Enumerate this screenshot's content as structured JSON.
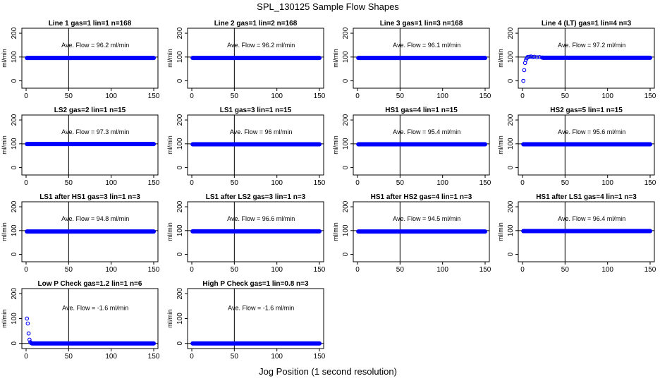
{
  "title": "SPL_130125  Sample Flow Shapes",
  "xlabel": "Jog Position (1 second resolution)",
  "colors": {
    "points": "#0000ff",
    "axis": "#000000",
    "reference_line": "#000000"
  },
  "chart_data": [
    {
      "type": "scatter",
      "title": "Line 1 gas=1 lin=1 n=168",
      "ylabel": "ml/min",
      "annotation": "Ave. Flow =  96.2  ml/min",
      "xlim": [
        0,
        150
      ],
      "ylim": [
        -25,
        215
      ],
      "xticks": [
        0,
        50,
        100,
        150
      ],
      "yticks": [
        0,
        100,
        200
      ],
      "ytick_labels": [
        "0",
        "100",
        "200"
      ],
      "vline": 50,
      "hline": 100,
      "points": [
        [
          1,
          96
        ],
        [
          150,
          96
        ]
      ],
      "flat": {
        "x0": 1,
        "x1": 150,
        "y": 96
      }
    },
    {
      "type": "scatter",
      "title": "Line 2 gas=1 lin=2 n=168",
      "ylabel": "ml/min",
      "annotation": "Ave. Flow =  96.2  ml/min",
      "xlim": [
        0,
        150
      ],
      "ylim": [
        -25,
        215
      ],
      "xticks": [
        0,
        50,
        100,
        150
      ],
      "yticks": [
        0,
        100,
        200
      ],
      "ytick_labels": [
        "0",
        "100",
        "200"
      ],
      "vline": 50,
      "hline": 100,
      "points": [
        [
          1,
          96
        ],
        [
          150,
          96
        ]
      ],
      "flat": {
        "x0": 1,
        "x1": 150,
        "y": 96
      }
    },
    {
      "type": "scatter",
      "title": "Line 3 gas=1 lin=3 n=168",
      "ylabel": "ml/min",
      "annotation": "Ave. Flow =  96.1  ml/min",
      "xlim": [
        0,
        150
      ],
      "ylim": [
        -25,
        215
      ],
      "xticks": [
        0,
        50,
        100,
        150
      ],
      "yticks": [
        0,
        100,
        200
      ],
      "ytick_labels": [
        "0",
        "100",
        "200"
      ],
      "vline": 50,
      "hline": 100,
      "points": [
        [
          1,
          96
        ],
        [
          150,
          96
        ]
      ],
      "flat": {
        "x0": 1,
        "x1": 150,
        "y": 96
      }
    },
    {
      "type": "scatter",
      "title": "Line 4 (LT) gas=1 lin=4 n=3",
      "ylabel": "ml/min",
      "annotation": "Ave. Flow =  97.2  ml/min",
      "xlim": [
        0,
        150
      ],
      "ylim": [
        -25,
        215
      ],
      "xticks": [
        0,
        50,
        100,
        150
      ],
      "yticks": [
        0,
        100,
        200
      ],
      "ytick_labels": [
        "0",
        "100",
        "200"
      ],
      "vline": 50,
      "hline": 100,
      "points": [
        [
          1,
          0
        ],
        [
          2,
          45
        ],
        [
          3,
          75
        ],
        [
          4,
          88
        ],
        [
          5,
          95
        ],
        [
          6,
          100
        ],
        [
          8,
          101
        ],
        [
          10,
          102
        ],
        [
          12,
          100
        ],
        [
          14,
          101
        ],
        [
          17,
          99
        ],
        [
          20,
          100
        ],
        [
          23,
          98
        ],
        [
          150,
          97
        ]
      ],
      "flat": {
        "x0": 24,
        "x1": 150,
        "y": 97
      }
    },
    {
      "type": "scatter",
      "title": "LS2 gas=2 lin=1 n=15",
      "ylabel": "ml/min",
      "annotation": "Ave. Flow =  97.3  ml/min",
      "xlim": [
        0,
        150
      ],
      "ylim": [
        -25,
        215
      ],
      "xticks": [
        0,
        50,
        100,
        150
      ],
      "yticks": [
        0,
        100,
        200
      ],
      "ytick_labels": [
        "0",
        "100",
        "200"
      ],
      "vline": 50,
      "hline": 100,
      "points": [
        [
          1,
          99
        ],
        [
          150,
          99
        ]
      ],
      "flat": {
        "x0": 1,
        "x1": 150,
        "y": 99
      }
    },
    {
      "type": "scatter",
      "title": "LS1 gas=3 lin=1 n=15",
      "ylabel": "ml/min",
      "annotation": "Ave. Flow =  96  ml/min",
      "xlim": [
        0,
        150
      ],
      "ylim": [
        -25,
        215
      ],
      "xticks": [
        0,
        50,
        100,
        150
      ],
      "yticks": [
        0,
        100,
        200
      ],
      "ytick_labels": [
        "0",
        "100",
        "200"
      ],
      "vline": 50,
      "hline": 100,
      "points": [
        [
          1,
          98
        ],
        [
          150,
          98
        ]
      ],
      "flat": {
        "x0": 1,
        "x1": 150,
        "y": 98
      }
    },
    {
      "type": "scatter",
      "title": "HS1 gas=4 lin=1 n=15",
      "ylabel": "ml/min",
      "annotation": "Ave. Flow =  95.4  ml/min",
      "xlim": [
        0,
        150
      ],
      "ylim": [
        -25,
        215
      ],
      "xticks": [
        0,
        50,
        100,
        150
      ],
      "yticks": [
        0,
        100,
        200
      ],
      "ytick_labels": [
        "0",
        "100",
        "200"
      ],
      "vline": 50,
      "hline": 100,
      "points": [
        [
          1,
          98
        ],
        [
          150,
          98
        ]
      ],
      "flat": {
        "x0": 1,
        "x1": 150,
        "y": 98
      }
    },
    {
      "type": "scatter",
      "title": "HS2 gas=5 lin=1 n=15",
      "ylabel": "ml/min",
      "annotation": "Ave. Flow =  95.6  ml/min",
      "xlim": [
        0,
        150
      ],
      "ylim": [
        -25,
        215
      ],
      "xticks": [
        0,
        50,
        100,
        150
      ],
      "yticks": [
        0,
        100,
        200
      ],
      "ytick_labels": [
        "0",
        "100",
        "200"
      ],
      "vline": 50,
      "hline": 100,
      "points": [
        [
          1,
          98
        ],
        [
          150,
          98
        ]
      ],
      "flat": {
        "x0": 1,
        "x1": 150,
        "y": 98
      }
    },
    {
      "type": "scatter",
      "title": "LS1 after HS1 gas=3 lin=1 n=3",
      "ylabel": "ml/min",
      "annotation": "Ave. Flow =  94.8  ml/min",
      "xlim": [
        0,
        150
      ],
      "ylim": [
        -25,
        215
      ],
      "xticks": [
        0,
        50,
        100,
        150
      ],
      "yticks": [
        0,
        100,
        200
      ],
      "ytick_labels": [
        "0",
        "100",
        "200"
      ],
      "vline": 50,
      "hline": 100,
      "points": [
        [
          1,
          96
        ],
        [
          150,
          96
        ]
      ],
      "flat": {
        "x0": 1,
        "x1": 150,
        "y": 96
      }
    },
    {
      "type": "scatter",
      "title": "LS1 after LS2 gas=3 lin=1 n=3",
      "ylabel": "ml/min",
      "annotation": "Ave. Flow =  96.6  ml/min",
      "xlim": [
        0,
        150
      ],
      "ylim": [
        -25,
        215
      ],
      "xticks": [
        0,
        50,
        100,
        150
      ],
      "yticks": [
        0,
        100,
        200
      ],
      "ytick_labels": [
        "0",
        "100",
        "200"
      ],
      "vline": 50,
      "hline": 100,
      "points": [
        [
          1,
          97
        ],
        [
          150,
          97
        ]
      ],
      "flat": {
        "x0": 1,
        "x1": 150,
        "y": 97
      }
    },
    {
      "type": "scatter",
      "title": "HS1 after HS2 gas=4 lin=1 n=3",
      "ylabel": "ml/min",
      "annotation": "Ave. Flow =  94.5  ml/min",
      "xlim": [
        0,
        150
      ],
      "ylim": [
        -25,
        215
      ],
      "xticks": [
        0,
        50,
        100,
        150
      ],
      "yticks": [
        0,
        100,
        200
      ],
      "ytick_labels": [
        "0",
        "100",
        "200"
      ],
      "vline": 50,
      "hline": 100,
      "points": [
        [
          1,
          96
        ],
        [
          150,
          96
        ]
      ],
      "flat": {
        "x0": 1,
        "x1": 150,
        "y": 96
      }
    },
    {
      "type": "scatter",
      "title": "HS1 after LS1 gas=4 lin=1 n=3",
      "ylabel": "ml/min",
      "annotation": "Ave. Flow =  96.4  ml/min",
      "xlim": [
        0,
        150
      ],
      "ylim": [
        -25,
        215
      ],
      "xticks": [
        0,
        50,
        100,
        150
      ],
      "yticks": [
        0,
        100,
        200
      ],
      "ytick_labels": [
        "0",
        "100",
        "200"
      ],
      "vline": 50,
      "hline": 100,
      "points": [
        [
          1,
          98
        ],
        [
          150,
          98
        ]
      ],
      "flat": {
        "x0": 1,
        "x1": 150,
        "y": 98
      }
    },
    {
      "type": "scatter",
      "title": "Low P Check gas=1.2 lin=1 n=6",
      "ylabel": "ml/min",
      "annotation": "Ave. Flow =  -1.6  ml/min",
      "xlim": [
        0,
        150
      ],
      "ylim": [
        -15,
        215
      ],
      "xticks": [
        0,
        50,
        100,
        150
      ],
      "yticks": [
        0,
        100,
        200
      ],
      "ytick_labels": [
        "0",
        "100",
        "200"
      ],
      "vline": 50,
      "hline": 0,
      "points": [
        [
          1,
          100
        ],
        [
          2,
          80
        ],
        [
          3,
          40
        ],
        [
          4,
          15
        ],
        [
          5,
          5
        ],
        [
          6,
          1
        ],
        [
          7,
          0
        ],
        [
          150,
          0
        ]
      ],
      "flat": {
        "x0": 7,
        "x1": 150,
        "y": 0
      }
    },
    {
      "type": "scatter",
      "title": "High P Check gas=1 lin=0.8 n=3",
      "ylabel": "ml/min",
      "annotation": "Ave. Flow =  -1.6  ml/min",
      "xlim": [
        0,
        150
      ],
      "ylim": [
        -15,
        215
      ],
      "xticks": [
        0,
        50,
        100,
        150
      ],
      "yticks": [
        0,
        100,
        200
      ],
      "ytick_labels": [
        "0",
        "100",
        "200"
      ],
      "vline": 50,
      "hline": 0,
      "points": [
        [
          1,
          0
        ],
        [
          150,
          0
        ]
      ],
      "flat": {
        "x0": 1,
        "x1": 150,
        "y": 0
      }
    }
  ]
}
